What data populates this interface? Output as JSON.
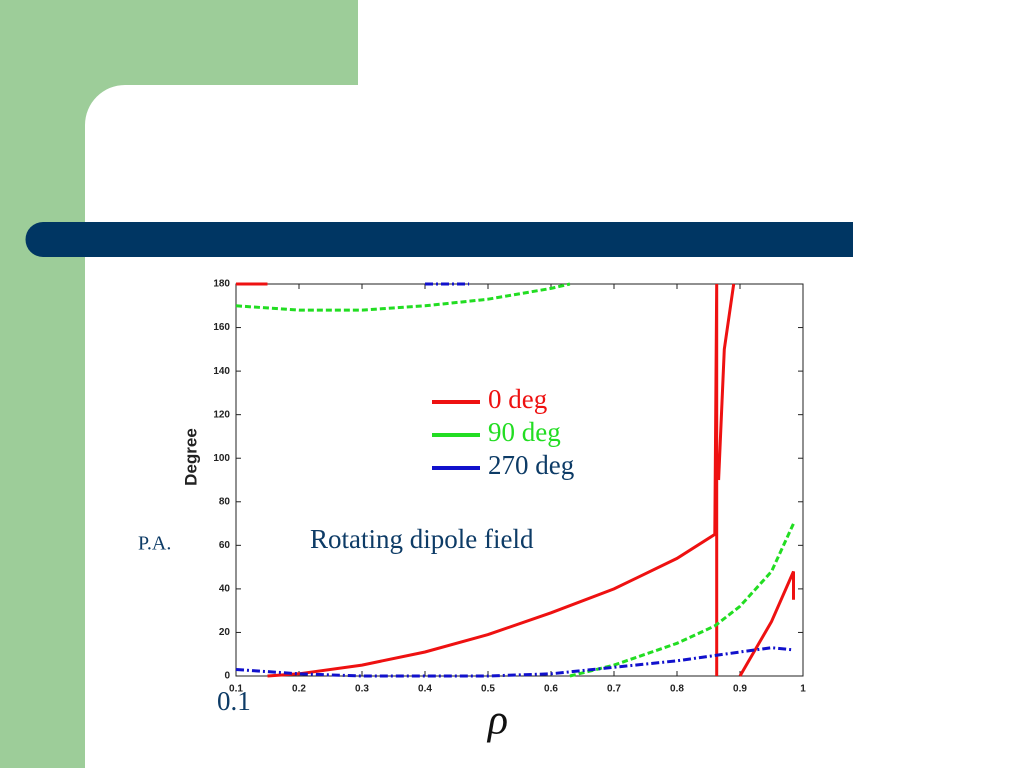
{
  "chart_data": {
    "type": "line",
    "xlabel": "ρ",
    "ylabel": "Degree",
    "annotations": [
      "Rotating dipole field",
      "P.A.",
      "0.1"
    ],
    "xlim": [
      0.1,
      1
    ],
    "xticks": [
      0.1,
      0.2,
      0.3,
      0.4,
      0.5,
      0.6,
      0.7,
      0.8,
      0.9,
      1
    ],
    "ylim": [
      0,
      180
    ],
    "yticks": [
      0,
      20,
      40,
      60,
      80,
      100,
      120,
      140,
      160,
      180
    ],
    "series": [
      {
        "name": "0 deg",
        "color": "#ee1111",
        "dash": "solid",
        "x": [
          0.1,
          0.15,
          0.15,
          0.15,
          0.2,
          0.3,
          0.4,
          0.5,
          0.6,
          0.7,
          0.8,
          0.86,
          0.863,
          0.863,
          0.863,
          0.866,
          0.875,
          0.89,
          0.89,
          0.9,
          0.95,
          0.985,
          0.985
        ],
        "values": [
          180,
          180,
          null,
          0,
          1,
          5,
          11,
          19,
          29,
          40,
          54,
          65,
          180,
          0,
          null,
          90,
          150,
          180,
          null,
          0,
          25,
          48,
          35
        ]
      },
      {
        "name": "90 deg",
        "color": "#22dd22",
        "dash": "dashed",
        "x": [
          0.1,
          0.2,
          0.3,
          0.4,
          0.5,
          0.6,
          0.63,
          0.63,
          0.63,
          0.7,
          0.8,
          0.86,
          0.9,
          0.95,
          0.985
        ],
        "values": [
          170,
          168,
          168,
          170,
          173,
          178,
          180,
          null,
          0,
          5,
          15,
          23,
          32,
          48,
          70
        ]
      },
      {
        "name": "270 deg",
        "color": "#1111cc",
        "dash": "dashdot",
        "x": [
          0.4,
          0.47,
          0.47,
          0.1,
          0.2,
          0.3,
          0.4,
          0.5,
          0.6,
          0.7,
          0.8,
          0.9,
          0.95,
          0.985
        ],
        "values": [
          180,
          180,
          null,
          3,
          1,
          0,
          0,
          0,
          1,
          4,
          7,
          11,
          13,
          12
        ]
      }
    ]
  }
}
